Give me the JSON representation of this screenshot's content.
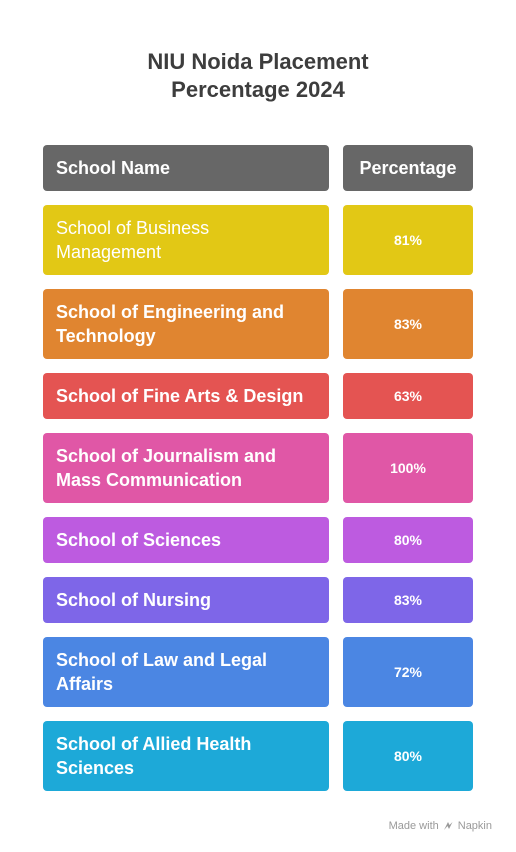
{
  "title": {
    "line1": "NIU Noida Placement",
    "line2": "Percentage 2024"
  },
  "table": {
    "headers": {
      "school": "School Name",
      "percentage": "Percentage"
    },
    "rows": [
      {
        "school": "School of Business Management",
        "percentage": "81%",
        "color": "#E2C815"
      },
      {
        "school": "School of Engineering and Technology",
        "percentage": "83%",
        "color": "#E08530"
      },
      {
        "school": "School of Fine Arts & Design",
        "percentage": "63%",
        "color": "#E45452"
      },
      {
        "school": "School of Journalism and Mass Communication",
        "percentage": "100%",
        "color": "#E057A6"
      },
      {
        "school": "School of Sciences",
        "percentage": "80%",
        "color": "#BD5BE0"
      },
      {
        "school": "School of Nursing",
        "percentage": "83%",
        "color": "#7E66E8"
      },
      {
        "school": "School of Law and Legal Affairs",
        "percentage": "72%",
        "color": "#4B86E3"
      },
      {
        "school": "School of Allied Health Sciences",
        "percentage": "80%",
        "color": "#1DA9D8"
      }
    ]
  },
  "footer": {
    "made_with": "Made with",
    "brand": "Napkin",
    "icon": "napkin-logo-icon"
  }
}
